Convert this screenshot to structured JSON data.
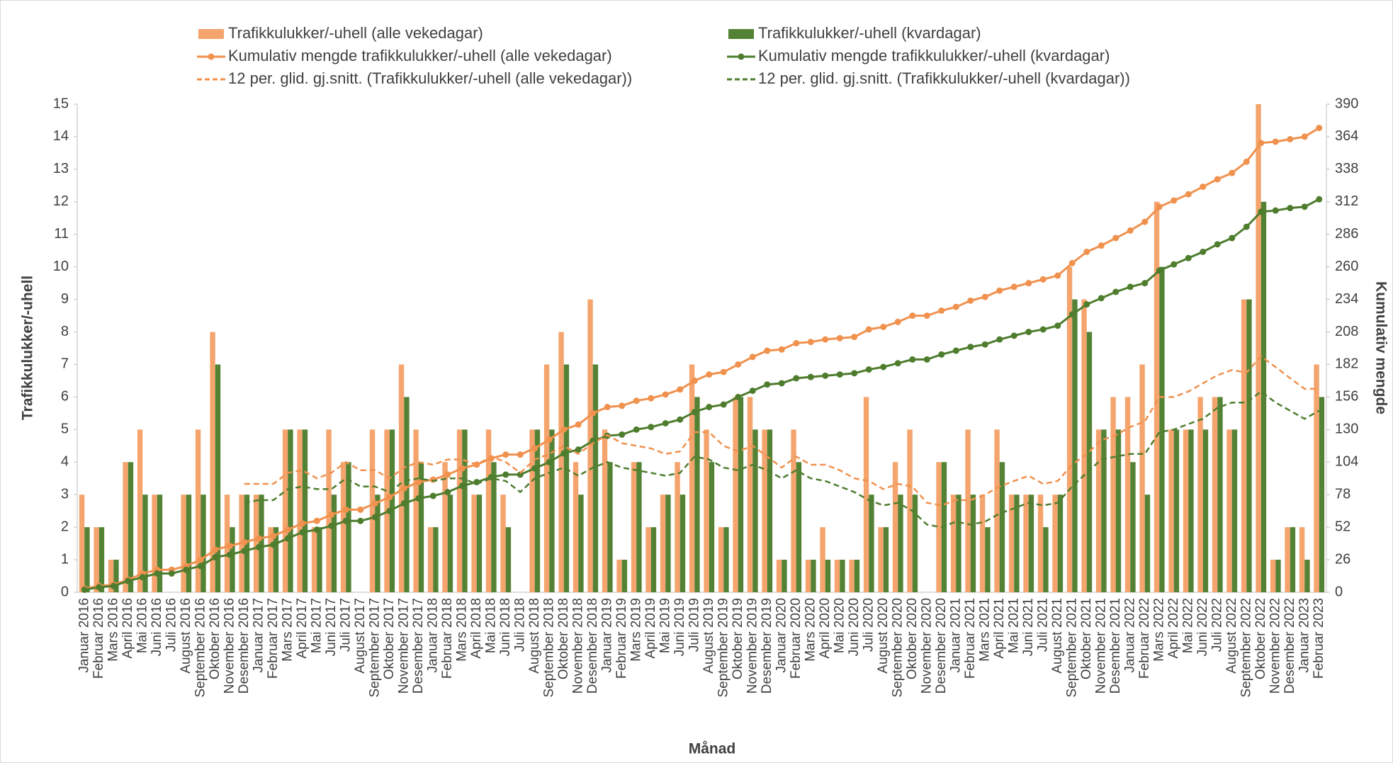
{
  "chart_data": {
    "type": "bar",
    "x_label": "Månad",
    "y_label": "Trafikkulukker/-uhell",
    "y2_label": "Kumulativ mengde",
    "ylim": [
      0,
      15
    ],
    "yticks": [
      0,
      1,
      2,
      3,
      4,
      5,
      6,
      7,
      8,
      9,
      10,
      11,
      12,
      13,
      14,
      15
    ],
    "y2lim": [
      0,
      390
    ],
    "y2ticks": [
      0,
      26,
      52,
      78,
      104,
      130,
      156,
      182,
      208,
      234,
      260,
      286,
      312,
      338,
      364,
      390
    ],
    "grid": false,
    "categories": [
      "Januar 2016",
      "Februar 2016",
      "Mars 2016",
      "April 2016",
      "Mai 2016",
      "Juni 2016",
      "Juli 2016",
      "August 2016",
      "September 2016",
      "Oktober 2016",
      "November 2016",
      "Desember 2016",
      "Januar 2017",
      "Februar 2017",
      "Mars 2017",
      "April 2017",
      "Mai 2017",
      "Juni 2017",
      "Juli 2017",
      "August 2017",
      "September 2017",
      "Oktober 2017",
      "November 2017",
      "Desember 2017",
      "Januar 2018",
      "Februar 2018",
      "Mars 2018",
      "April 2018",
      "Mai 2018",
      "Juni 2018",
      "Juli 2018",
      "August 2018",
      "September 2018",
      "Oktober 2018",
      "November 2018",
      "Desember 2018",
      "Januar 2019",
      "Februar 2019",
      "Mars 2019",
      "April 2019",
      "Mai 2019",
      "Juni 2019",
      "Juli 2019",
      "August 2019",
      "September 2019",
      "Oktober 2019",
      "November 2019",
      "Desember 2019",
      "Januar 2020",
      "Februar 2020",
      "Mars 2020",
      "April 2020",
      "Mai 2020",
      "Juni 2020",
      "Juli 2020",
      "August 2020",
      "September 2020",
      "Oktober 2020",
      "November 2020",
      "Desember 2020",
      "Januar 2021",
      "Februar 2021",
      "Mars 2021",
      "April 2021",
      "Mai 2021",
      "Juni 2021",
      "Juli 2021",
      "August 2021",
      "September 2021",
      "Oktober 2021",
      "November 2021",
      "Desember 2021",
      "Januar 2022",
      "Februar 2022",
      "Mars 2022",
      "April 2022",
      "Mai 2022",
      "Juni 2022",
      "Juli 2022",
      "August 2022",
      "September 2022",
      "Oktober 2022",
      "November 2022",
      "Desember 2022",
      "Januar 2023",
      "Februar 2023"
    ],
    "series": [
      {
        "name": "Trafikkulukker/-uhell (alle vekedagar)",
        "type": "bar",
        "color": "#f4a46c",
        "values": [
          3,
          2,
          1,
          4,
          5,
          3,
          0,
          3,
          5,
          8,
          3,
          3,
          3,
          2,
          5,
          5,
          2,
          5,
          4,
          0,
          5,
          5,
          7,
          5,
          2,
          4,
          5,
          3,
          5,
          3,
          0,
          5,
          7,
          8,
          4,
          9,
          5,
          1,
          4,
          2,
          3,
          4,
          7,
          5,
          2,
          6,
          6,
          5,
          1,
          5,
          1,
          2,
          1,
          1,
          6,
          2,
          4,
          5,
          0,
          4,
          3,
          5,
          3,
          5,
          3,
          3,
          3,
          3,
          10,
          9,
          5,
          6,
          6,
          7,
          12,
          5,
          5,
          6,
          6,
          5,
          9,
          15,
          1,
          2,
          2,
          7
        ]
      },
      {
        "name": "Trafikkulukker/-uhell (kvardagar)",
        "type": "bar",
        "color": "#548235",
        "values": [
          2,
          2,
          1,
          4,
          3,
          3,
          0,
          3,
          3,
          7,
          2,
          3,
          3,
          2,
          5,
          5,
          2,
          3,
          4,
          0,
          3,
          5,
          6,
          4,
          2,
          3,
          5,
          3,
          4,
          2,
          0,
          5,
          5,
          7,
          3,
          7,
          4,
          1,
          4,
          2,
          3,
          3,
          6,
          4,
          2,
          6,
          5,
          5,
          1,
          4,
          1,
          1,
          1,
          1,
          3,
          2,
          3,
          3,
          0,
          4,
          3,
          3,
          2,
          4,
          3,
          3,
          2,
          3,
          9,
          8,
          5,
          5,
          4,
          3,
          10,
          5,
          5,
          5,
          6,
          5,
          9,
          12,
          1,
          2,
          1,
          6
        ]
      },
      {
        "name": "Kumulativ mengde trafikkulukker/-uhell (alle vekedagar)",
        "type": "line",
        "axis": "y2",
        "markers": true,
        "dashed": false,
        "color": "#f0914e",
        "values": [
          3,
          5,
          6,
          10,
          15,
          18,
          18,
          21,
          26,
          34,
          37,
          40,
          43,
          45,
          50,
          55,
          57,
          62,
          66,
          66,
          71,
          76,
          83,
          88,
          90,
          94,
          99,
          102,
          107,
          110,
          110,
          115,
          122,
          130,
          134,
          143,
          148,
          149,
          153,
          155,
          158,
          162,
          169,
          174,
          176,
          182,
          188,
          193,
          194,
          199,
          200,
          202,
          203,
          204,
          210,
          212,
          216,
          221,
          221,
          225,
          228,
          233,
          236,
          241,
          244,
          247,
          250,
          253,
          263,
          272,
          277,
          283,
          289,
          296,
          308,
          313,
          318,
          324,
          330,
          335,
          344,
          359,
          360,
          362,
          364,
          371
        ]
      },
      {
        "name": "Kumulativ mengde trafikkulukker/-uhell (kvardagar)",
        "type": "line",
        "axis": "y2",
        "markers": true,
        "dashed": false,
        "color": "#4e7d2e",
        "values": [
          2,
          4,
          5,
          9,
          12,
          15,
          15,
          18,
          21,
          28,
          30,
          33,
          36,
          38,
          43,
          48,
          50,
          53,
          57,
          57,
          60,
          65,
          71,
          75,
          77,
          80,
          85,
          88,
          92,
          94,
          94,
          99,
          104,
          111,
          114,
          121,
          125,
          126,
          130,
          132,
          135,
          138,
          144,
          148,
          150,
          156,
          161,
          166,
          167,
          171,
          172,
          173,
          174,
          175,
          178,
          180,
          183,
          186,
          186,
          190,
          193,
          196,
          198,
          202,
          205,
          208,
          210,
          213,
          222,
          230,
          235,
          240,
          244,
          247,
          257,
          262,
          267,
          272,
          278,
          283,
          292,
          304,
          305,
          307,
          308,
          314
        ]
      },
      {
        "name": "12 per. glid. gj.snitt. (Trafikkulukker/-uhell (alle vekedagar))",
        "type": "line",
        "markers": false,
        "dashed": true,
        "color": "#f0914e",
        "values": [
          null,
          null,
          null,
          null,
          null,
          null,
          null,
          null,
          null,
          null,
          null,
          3.33,
          3.33,
          3.33,
          3.67,
          3.75,
          3.5,
          3.67,
          4,
          3.75,
          3.75,
          3.5,
          3.83,
          4,
          3.92,
          4.08,
          4.08,
          3.92,
          4.17,
          4,
          3.67,
          4.08,
          4.25,
          4.5,
          4.25,
          4.58,
          4.83,
          4.58,
          4.5,
          4.42,
          4.25,
          4.33,
          4.92,
          4.92,
          4.5,
          4.33,
          4.5,
          4.17,
          3.83,
          4.17,
          3.92,
          3.92,
          3.75,
          3.5,
          3.42,
          3.17,
          3.33,
          3.25,
          2.75,
          2.67,
          2.83,
          2.83,
          3,
          3.25,
          3.42,
          3.58,
          3.33,
          3.42,
          3.92,
          4.25,
          4.67,
          4.83,
          5.08,
          5.25,
          6,
          6,
          6.17,
          6.42,
          6.67,
          6.83,
          6.75,
          7.25,
          6.92,
          6.58,
          6.25,
          6.25
        ]
      },
      {
        "name": "12 per. glid. gj.snitt. (Trafikkulukker/-uhell (kvardagar))",
        "type": "line",
        "markers": false,
        "dashed": true,
        "color": "#4e7d2e",
        "values": [
          null,
          null,
          null,
          null,
          null,
          null,
          null,
          null,
          null,
          null,
          null,
          2.75,
          2.83,
          2.83,
          3.17,
          3.25,
          3.17,
          3.17,
          3.5,
          3.25,
          3.25,
          3.08,
          3.42,
          3.5,
          3.42,
          3.5,
          3.5,
          3.33,
          3.5,
          3.42,
          3.08,
          3.5,
          3.67,
          3.83,
          3.58,
          3.83,
          4,
          3.83,
          3.75,
          3.67,
          3.58,
          3.67,
          4.17,
          4.08,
          3.83,
          3.75,
          3.92,
          3.75,
          3.5,
          3.75,
          3.5,
          3.42,
          3.25,
          3.08,
          2.83,
          2.67,
          2.75,
          2.5,
          2.08,
          2,
          2.17,
          2.08,
          2.17,
          2.42,
          2.58,
          2.75,
          2.67,
          2.75,
          3.25,
          3.67,
          4.08,
          4.17,
          4.25,
          4.25,
          4.92,
          5,
          5.17,
          5.33,
          5.67,
          5.83,
          5.83,
          6.17,
          5.83,
          5.58,
          5.33,
          5.58
        ]
      }
    ]
  }
}
